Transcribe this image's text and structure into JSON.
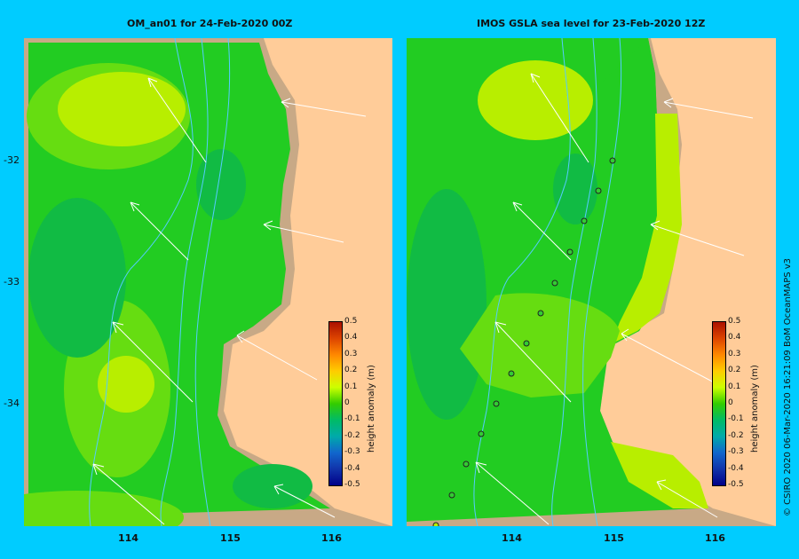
{
  "panels": [
    {
      "title": "OM_an01  for 24-Feb-2020 00Z"
    },
    {
      "title": "IMOS GSLA sea level   for 23-Feb-2020 12Z"
    }
  ],
  "axes": {
    "lat_labels": [
      "-32",
      "-33",
      "-34"
    ],
    "lon_labels": [
      "114",
      "115",
      "116"
    ]
  },
  "colorbar": {
    "title": "height anomaly (m)",
    "ticks": [
      "0.5",
      "0.4",
      "0.3",
      "0.2",
      "0.1",
      "0",
      "-0.1",
      "-0.2",
      "-0.3",
      "-0.4",
      "-0.5"
    ],
    "colors": [
      "#aa1100",
      "#dd4400",
      "#ff8800",
      "#ffcc00",
      "#ccff00",
      "#33cc00",
      "#00bb66",
      "#00aaaa",
      "#1166cc",
      "#1133aa",
      "#000088"
    ]
  },
  "credit": "© CSIRO 2020   06-Mar-2020 16:21:09 BoM OceanMAPS v3",
  "colors": {
    "background": "#00ccff",
    "land": "#ffcc99",
    "shelf": "#c8a986",
    "green": "#22cc22",
    "lime": "#b8ee00"
  }
}
